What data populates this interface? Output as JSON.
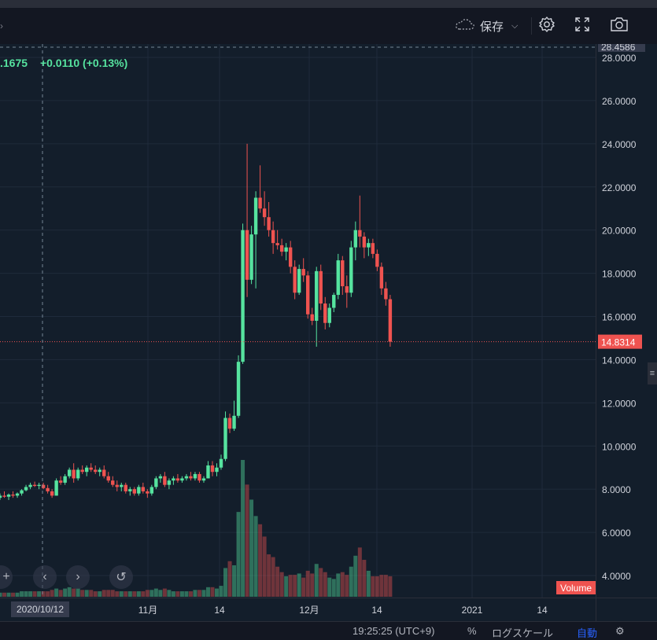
{
  "toolbar": {
    "save_label": "保存",
    "icons": [
      "cloud-icon",
      "chevron-down-icon",
      "gear-icon",
      "fullscreen-icon",
      "camera-icon"
    ]
  },
  "legend": {
    "last_value": ".1675",
    "change": "+0.0110 (+0.13%)",
    "color": "#56e39f"
  },
  "crosshair": {
    "date_label": "2020/10/12",
    "top_price_label": "28.4586"
  },
  "current_price": {
    "label": "14.8314",
    "value": 14.8314,
    "color": "#ef5350"
  },
  "volume_label": "Volume",
  "bottom_bar": {
    "time": "19:25:25 (UTC+9)",
    "percent": "%",
    "log_scale": "ログスケール",
    "auto": "自動"
  },
  "colors": {
    "up": "#56e39f",
    "down": "#ef5350",
    "background": "#131e2b",
    "grid": "#1f2b3b"
  },
  "chart_data": {
    "type": "candlestick",
    "y_axis": {
      "ticks": [
        "4.0000",
        "6.0000",
        "8.0000",
        "10.0000",
        "12.0000",
        "14.0000",
        "16.0000",
        "18.0000",
        "20.0000",
        "22.0000",
        "24.0000",
        "26.0000",
        "28.0000"
      ],
      "range": [
        3.0,
        28.5
      ]
    },
    "x_axis": {
      "tick_labels": [
        "11月",
        "14",
        "12月",
        "14",
        "2021",
        "14"
      ]
    },
    "candles": [
      {
        "o": 7.6,
        "h": 7.8,
        "l": 7.5,
        "c": 7.7,
        "v": 0.3
      },
      {
        "o": 7.7,
        "h": 7.9,
        "l": 7.6,
        "c": 7.65,
        "v": 0.3
      },
      {
        "o": 7.65,
        "h": 7.8,
        "l": 7.5,
        "c": 7.75,
        "v": 0.3
      },
      {
        "o": 7.75,
        "h": 7.9,
        "l": 7.6,
        "c": 7.7,
        "v": 0.3
      },
      {
        "o": 7.7,
        "h": 7.85,
        "l": 7.6,
        "c": 7.8,
        "v": 0.3
      },
      {
        "o": 7.8,
        "h": 8.0,
        "l": 7.7,
        "c": 7.95,
        "v": 0.4
      },
      {
        "o": 7.95,
        "h": 8.2,
        "l": 7.9,
        "c": 8.1,
        "v": 0.4
      },
      {
        "o": 8.1,
        "h": 8.3,
        "l": 8.0,
        "c": 8.2,
        "v": 0.4
      },
      {
        "o": 8.2,
        "h": 8.35,
        "l": 8.1,
        "c": 8.15,
        "v": 0.4
      },
      {
        "o": 8.15,
        "h": 8.3,
        "l": 8.0,
        "c": 8.2,
        "v": 0.4
      },
      {
        "o": 8.2,
        "h": 8.3,
        "l": 8.0,
        "c": 8.05,
        "v": 0.4
      },
      {
        "o": 8.05,
        "h": 8.2,
        "l": 7.8,
        "c": 7.9,
        "v": 0.4
      },
      {
        "o": 7.9,
        "h": 8.0,
        "l": 7.6,
        "c": 7.7,
        "v": 0.5
      },
      {
        "o": 7.7,
        "h": 8.5,
        "l": 7.7,
        "c": 8.4,
        "v": 0.6
      },
      {
        "o": 8.4,
        "h": 8.6,
        "l": 8.2,
        "c": 8.3,
        "v": 0.5
      },
      {
        "o": 8.3,
        "h": 8.7,
        "l": 8.2,
        "c": 8.6,
        "v": 0.6
      },
      {
        "o": 8.6,
        "h": 9.0,
        "l": 8.5,
        "c": 8.9,
        "v": 0.7
      },
      {
        "o": 8.9,
        "h": 9.2,
        "l": 8.3,
        "c": 8.5,
        "v": 0.6
      },
      {
        "o": 8.5,
        "h": 9.0,
        "l": 8.4,
        "c": 8.9,
        "v": 0.6
      },
      {
        "o": 8.9,
        "h": 9.1,
        "l": 8.7,
        "c": 8.8,
        "v": 0.5
      },
      {
        "o": 8.8,
        "h": 9.1,
        "l": 8.6,
        "c": 9.0,
        "v": 0.5
      },
      {
        "o": 9.0,
        "h": 9.2,
        "l": 8.8,
        "c": 8.9,
        "v": 0.5
      },
      {
        "o": 8.9,
        "h": 9.1,
        "l": 8.7,
        "c": 8.8,
        "v": 0.4
      },
      {
        "o": 8.8,
        "h": 9.0,
        "l": 8.6,
        "c": 8.9,
        "v": 0.4
      },
      {
        "o": 8.9,
        "h": 9.1,
        "l": 8.5,
        "c": 8.6,
        "v": 0.5
      },
      {
        "o": 8.6,
        "h": 8.8,
        "l": 8.3,
        "c": 8.4,
        "v": 0.5
      },
      {
        "o": 8.4,
        "h": 8.6,
        "l": 8.1,
        "c": 8.2,
        "v": 0.5
      },
      {
        "o": 8.2,
        "h": 8.4,
        "l": 7.9,
        "c": 8.1,
        "v": 0.4
      },
      {
        "o": 8.1,
        "h": 8.3,
        "l": 7.9,
        "c": 8.2,
        "v": 0.4
      },
      {
        "o": 8.2,
        "h": 8.3,
        "l": 7.8,
        "c": 7.9,
        "v": 0.4
      },
      {
        "o": 7.9,
        "h": 8.1,
        "l": 7.7,
        "c": 8.0,
        "v": 0.4
      },
      {
        "o": 8.0,
        "h": 8.1,
        "l": 7.7,
        "c": 7.8,
        "v": 0.4
      },
      {
        "o": 7.8,
        "h": 8.2,
        "l": 7.7,
        "c": 8.1,
        "v": 0.4
      },
      {
        "o": 8.1,
        "h": 8.3,
        "l": 7.8,
        "c": 7.9,
        "v": 0.4
      },
      {
        "o": 7.9,
        "h": 8.0,
        "l": 7.6,
        "c": 7.8,
        "v": 0.5
      },
      {
        "o": 7.8,
        "h": 8.2,
        "l": 7.7,
        "c": 8.1,
        "v": 0.5
      },
      {
        "o": 8.1,
        "h": 8.6,
        "l": 8.0,
        "c": 8.5,
        "v": 0.6
      },
      {
        "o": 8.5,
        "h": 8.7,
        "l": 8.3,
        "c": 8.6,
        "v": 0.5
      },
      {
        "o": 8.6,
        "h": 8.8,
        "l": 8.1,
        "c": 8.2,
        "v": 0.6
      },
      {
        "o": 8.2,
        "h": 8.5,
        "l": 8.0,
        "c": 8.4,
        "v": 0.5
      },
      {
        "o": 8.4,
        "h": 8.6,
        "l": 8.2,
        "c": 8.5,
        "v": 0.4
      },
      {
        "o": 8.5,
        "h": 8.7,
        "l": 8.3,
        "c": 8.4,
        "v": 0.4
      },
      {
        "o": 8.4,
        "h": 8.6,
        "l": 8.3,
        "c": 8.5,
        "v": 0.4
      },
      {
        "o": 8.5,
        "h": 8.7,
        "l": 8.4,
        "c": 8.6,
        "v": 0.4
      },
      {
        "o": 8.6,
        "h": 8.8,
        "l": 8.4,
        "c": 8.5,
        "v": 0.4
      },
      {
        "o": 8.5,
        "h": 8.8,
        "l": 8.4,
        "c": 8.7,
        "v": 0.5
      },
      {
        "o": 8.7,
        "h": 8.8,
        "l": 8.3,
        "c": 8.4,
        "v": 0.5
      },
      {
        "o": 8.4,
        "h": 8.6,
        "l": 8.3,
        "c": 8.5,
        "v": 0.5
      },
      {
        "o": 8.5,
        "h": 9.3,
        "l": 8.5,
        "c": 9.1,
        "v": 0.7
      },
      {
        "o": 9.1,
        "h": 9.3,
        "l": 8.6,
        "c": 8.8,
        "v": 0.7
      },
      {
        "o": 8.8,
        "h": 9.2,
        "l": 8.6,
        "c": 9.0,
        "v": 0.6
      },
      {
        "o": 9.0,
        "h": 9.6,
        "l": 8.9,
        "c": 9.4,
        "v": 0.8
      },
      {
        "o": 9.4,
        "h": 11.6,
        "l": 9.3,
        "c": 11.3,
        "v": 2.1
      },
      {
        "o": 11.3,
        "h": 11.5,
        "l": 10.6,
        "c": 10.8,
        "v": 2.6
      },
      {
        "o": 10.8,
        "h": 12.1,
        "l": 10.7,
        "c": 11.4,
        "v": 2.3
      },
      {
        "o": 11.4,
        "h": 14.2,
        "l": 11.3,
        "c": 13.9,
        "v": 6.2
      },
      {
        "o": 13.9,
        "h": 20.3,
        "l": 13.8,
        "c": 20.0,
        "v": 10.0
      },
      {
        "o": 20.0,
        "h": 24.0,
        "l": 16.9,
        "c": 17.7,
        "v": 8.2
      },
      {
        "o": 17.7,
        "h": 20.2,
        "l": 17.5,
        "c": 19.8,
        "v": 7.1
      },
      {
        "o": 19.8,
        "h": 21.8,
        "l": 17.3,
        "c": 21.5,
        "v": 5.9
      },
      {
        "o": 21.5,
        "h": 23.0,
        "l": 20.8,
        "c": 21.0,
        "v": 5.3
      },
      {
        "o": 21.0,
        "h": 21.8,
        "l": 20.2,
        "c": 20.6,
        "v": 4.4
      },
      {
        "o": 20.6,
        "h": 21.3,
        "l": 19.7,
        "c": 20.0,
        "v": 3.1
      },
      {
        "o": 20.0,
        "h": 20.4,
        "l": 18.9,
        "c": 19.4,
        "v": 2.9
      },
      {
        "o": 19.4,
        "h": 20.0,
        "l": 19.1,
        "c": 19.3,
        "v": 2.2
      },
      {
        "o": 19.3,
        "h": 19.6,
        "l": 18.8,
        "c": 19.0,
        "v": 1.8
      },
      {
        "o": 19.0,
        "h": 19.4,
        "l": 18.6,
        "c": 19.2,
        "v": 1.5
      },
      {
        "o": 19.2,
        "h": 19.5,
        "l": 18.0,
        "c": 18.3,
        "v": 1.6
      },
      {
        "o": 18.3,
        "h": 18.6,
        "l": 16.8,
        "c": 17.1,
        "v": 1.6
      },
      {
        "o": 17.1,
        "h": 18.4,
        "l": 17.0,
        "c": 18.2,
        "v": 1.7
      },
      {
        "o": 18.2,
        "h": 18.7,
        "l": 17.6,
        "c": 17.9,
        "v": 1.4
      },
      {
        "o": 17.9,
        "h": 18.1,
        "l": 15.9,
        "c": 16.1,
        "v": 1.9
      },
      {
        "o": 16.1,
        "h": 16.4,
        "l": 15.6,
        "c": 15.8,
        "v": 1.7
      },
      {
        "o": 15.8,
        "h": 18.3,
        "l": 14.6,
        "c": 18.1,
        "v": 2.4
      },
      {
        "o": 18.1,
        "h": 18.4,
        "l": 16.3,
        "c": 16.6,
        "v": 2.1
      },
      {
        "o": 16.6,
        "h": 16.9,
        "l": 15.4,
        "c": 15.7,
        "v": 1.8
      },
      {
        "o": 15.7,
        "h": 16.6,
        "l": 15.5,
        "c": 16.4,
        "v": 1.4
      },
      {
        "o": 16.4,
        "h": 17.1,
        "l": 16.2,
        "c": 17.0,
        "v": 1.3
      },
      {
        "o": 17.0,
        "h": 18.9,
        "l": 16.8,
        "c": 18.6,
        "v": 1.7
      },
      {
        "o": 18.6,
        "h": 18.8,
        "l": 17.0,
        "c": 17.4,
        "v": 1.8
      },
      {
        "o": 17.4,
        "h": 17.9,
        "l": 16.4,
        "c": 17.1,
        "v": 1.6
      },
      {
        "o": 17.1,
        "h": 19.5,
        "l": 16.9,
        "c": 19.2,
        "v": 2.2
      },
      {
        "o": 19.2,
        "h": 20.4,
        "l": 18.6,
        "c": 20.0,
        "v": 3.0
      },
      {
        "o": 20.0,
        "h": 21.6,
        "l": 19.2,
        "c": 19.7,
        "v": 3.6
      },
      {
        "o": 19.7,
        "h": 19.9,
        "l": 18.7,
        "c": 19.2,
        "v": 2.7
      },
      {
        "o": 19.2,
        "h": 19.6,
        "l": 18.8,
        "c": 19.4,
        "v": 1.9
      },
      {
        "o": 19.4,
        "h": 19.6,
        "l": 18.7,
        "c": 18.9,
        "v": 1.5
      },
      {
        "o": 18.9,
        "h": 19.1,
        "l": 18.1,
        "c": 18.3,
        "v": 1.5
      },
      {
        "o": 18.3,
        "h": 18.5,
        "l": 17.0,
        "c": 17.3,
        "v": 1.6
      },
      {
        "o": 17.3,
        "h": 17.6,
        "l": 16.5,
        "c": 16.8,
        "v": 1.6
      },
      {
        "o": 16.8,
        "h": 17.0,
        "l": 14.6,
        "c": 14.8314,
        "v": 1.5
      }
    ]
  }
}
